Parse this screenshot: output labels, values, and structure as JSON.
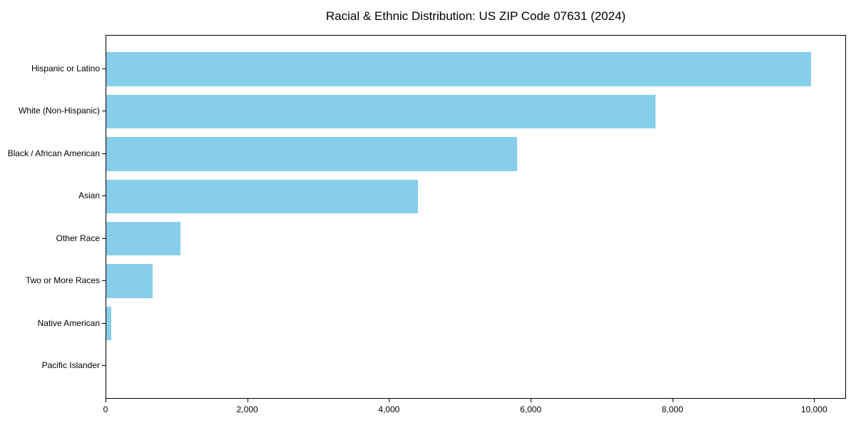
{
  "title": "Racial & Ethnic Distribution: US ZIP Code 07631 (2024)",
  "chart_data": {
    "type": "bar",
    "orientation": "horizontal",
    "title": "Racial & Ethnic Distribution: US ZIP Code 07631 (2024)",
    "xlabel": "",
    "ylabel": "",
    "categories": [
      "Hispanic or Latino",
      "White (Non-Hispanic)",
      "Black / African American",
      "Asian",
      "Other Race",
      "Two or More Races",
      "Native American",
      "Pacific Islander"
    ],
    "values": [
      9950,
      7750,
      5800,
      4400,
      1050,
      650,
      70,
      0
    ],
    "xlim": [
      0,
      10450
    ],
    "x_ticks": [
      0,
      2000,
      4000,
      6000,
      8000,
      10000
    ],
    "x_tick_labels": [
      "0",
      "2,000",
      "4,000",
      "6,000",
      "8,000",
      "10,000"
    ],
    "bar_color": "#87CEEB",
    "grid": false,
    "legend": null,
    "frame": "full-box"
  },
  "colors": {
    "bar": "#87CEEB",
    "axis": "#000000",
    "text": "#000000",
    "background": "#FFFFFF"
  }
}
